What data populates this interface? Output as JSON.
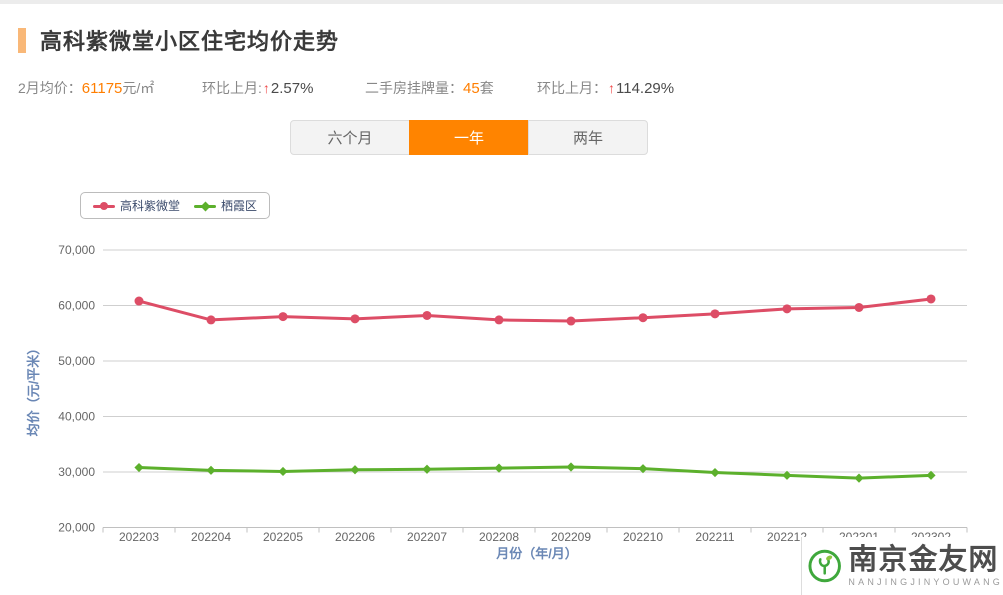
{
  "header": {
    "title": "高科紫微堂小区住宅均价走势"
  },
  "stats": {
    "avg": {
      "label": "2月均价：",
      "value": "61175",
      "suffix": "元/㎡"
    },
    "mom": {
      "label": "环比上月:",
      "arrow": "↑",
      "value": "2.57%"
    },
    "listings": {
      "label": "二手房挂牌量：",
      "value": "45",
      "suffix": "套"
    },
    "mom2": {
      "label": "环比上月：",
      "arrow": "↑",
      "value": "114.29%"
    }
  },
  "tabs": [
    {
      "label": "六个月",
      "active": false
    },
    {
      "label": "一年",
      "active": true
    },
    {
      "label": "两年",
      "active": false
    }
  ],
  "chart_data": {
    "type": "line",
    "x": [
      "202203",
      "202204",
      "202205",
      "202206",
      "202207",
      "202208",
      "202209",
      "202210",
      "202211",
      "202212",
      "202301",
      "202302"
    ],
    "series": [
      {
        "name": "高科紫微堂",
        "color": "#dd4d66",
        "marker": "circle",
        "values": [
          60800,
          57400,
          58000,
          57600,
          58200,
          57400,
          57200,
          57800,
          58500,
          59400,
          59642,
          61175
        ]
      },
      {
        "name": "栖霞区",
        "color": "#5cb02c",
        "marker": "diamond",
        "values": [
          30800,
          30300,
          30100,
          30400,
          30500,
          30700,
          30900,
          30600,
          29900,
          29400,
          28900,
          29400
        ]
      }
    ],
    "ylabel": "均价（元/平米）",
    "xlabel": "月份（年/月）",
    "ylim": [
      20000,
      70000
    ],
    "ytick_step": 10000,
    "grid": true,
    "legend_position": "top-left"
  },
  "watermark": {
    "name": "南京金友网",
    "subtitle": "NANJINGJINYOUWANG"
  },
  "colors": {
    "accent_orange": "#ff8400",
    "value_orange": "#ff7e00",
    "arrow_red": "#f04848",
    "series_pink": "#dd4d66",
    "series_green": "#5cb02c",
    "axis_title_blue": "#6a87b5",
    "grid_line": "#cfcfcf",
    "tick_text": "#666666"
  }
}
